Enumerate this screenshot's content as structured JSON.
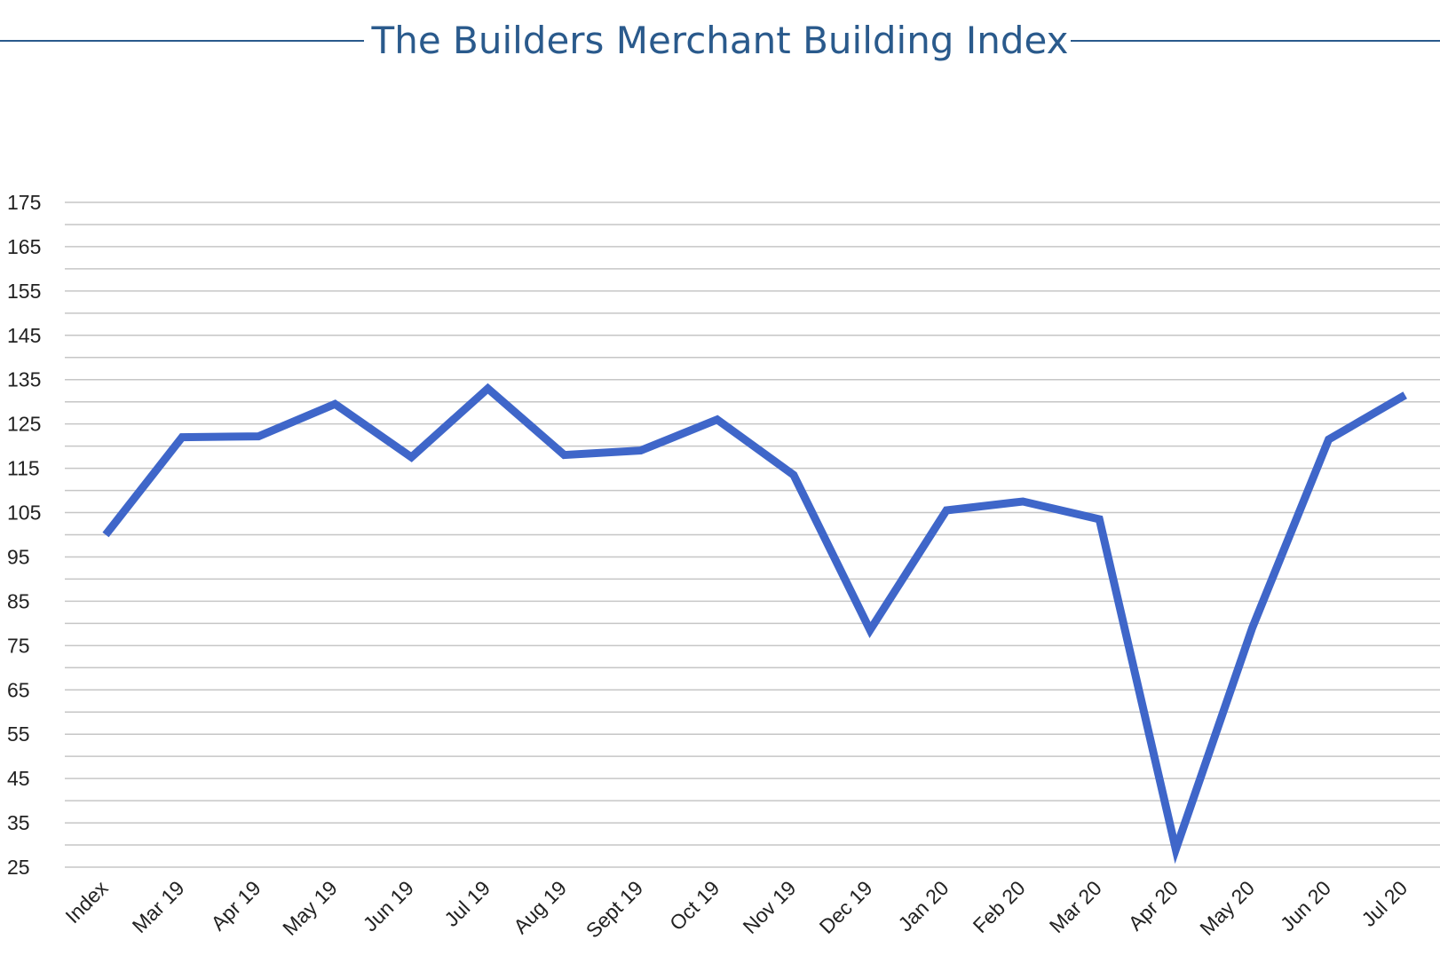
{
  "chart_data": {
    "type": "line",
    "title": "The Builders Merchant Building Index",
    "xlabel": "",
    "ylabel": "",
    "categories": [
      "Index",
      "Mar 19",
      "Apr 19",
      "May 19",
      "Jun 19",
      "Jul 19",
      "Aug 19",
      "Sept 19",
      "Oct 19",
      "Nov 19",
      "Dec 19",
      "Jan 20",
      "Feb 20",
      "Mar 20",
      "Apr 20",
      "May 20",
      "Jun 20",
      "Jul 20"
    ],
    "series": [
      {
        "values": [
          100,
          122,
          122.2,
          129.5,
          117.5,
          133,
          118,
          119,
          126,
          113.5,
          78.5,
          105.5,
          107.5,
          103.5,
          29,
          79,
          121.5,
          131.5
        ]
      }
    ],
    "y_ticks": [
      25,
      35,
      45,
      55,
      65,
      75,
      85,
      95,
      105,
      115,
      125,
      135,
      145,
      155,
      165,
      175
    ],
    "ylim": [
      25,
      175
    ],
    "grid": true,
    "minor_gridlines": true,
    "legend": "none",
    "colors": {
      "line": "#3f66c9",
      "title": "#2a5a8c",
      "grid": "#c6c6c6"
    }
  }
}
